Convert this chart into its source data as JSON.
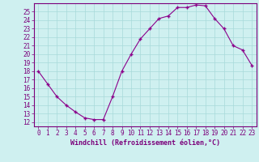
{
  "x": [
    0,
    1,
    2,
    3,
    4,
    5,
    6,
    7,
    8,
    9,
    10,
    11,
    12,
    13,
    14,
    15,
    16,
    17,
    18,
    19,
    20,
    21,
    22,
    23
  ],
  "y": [
    18,
    16.5,
    15,
    14,
    13.2,
    12.5,
    12.3,
    12.3,
    15,
    18,
    20,
    21.8,
    23,
    24.2,
    24.5,
    25.5,
    25.5,
    25.8,
    25.7,
    24.2,
    23,
    21,
    20.5,
    18.7
  ],
  "line_color": "#8b008b",
  "marker": "+",
  "marker_size": 3.5,
  "marker_linewidth": 1.0,
  "background_color": "#cff0f0",
  "grid_color": "#a8dada",
  "xlabel": "Windchill (Refroidissement éolien,°C)",
  "xlim": [
    -0.5,
    23.5
  ],
  "ylim": [
    11.5,
    26.0
  ],
  "yticks": [
    12,
    13,
    14,
    15,
    16,
    17,
    18,
    19,
    20,
    21,
    22,
    23,
    24,
    25
  ],
  "xticks": [
    0,
    1,
    2,
    3,
    4,
    5,
    6,
    7,
    8,
    9,
    10,
    11,
    12,
    13,
    14,
    15,
    16,
    17,
    18,
    19,
    20,
    21,
    22,
    23
  ],
  "tick_color": "#7b007b",
  "label_color": "#7b007b",
  "tick_fontsize": 5.5,
  "xlabel_fontsize": 6.0
}
